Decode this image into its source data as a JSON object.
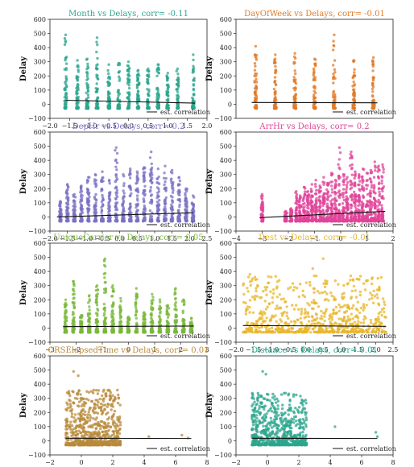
{
  "chart_data": [
    {
      "type": "scatter",
      "title": "Month vs Delays, corr= -0.11",
      "color": "#2ca58d",
      "ylabel": "Delay",
      "xlim": [
        -2.0,
        2.0
      ],
      "ylim": [
        -100,
        600
      ],
      "xticks": [
        -2.0,
        -1.5,
        -1.0,
        -0.5,
        0.0,
        0.5,
        1.0,
        1.5,
        2.0
      ],
      "xtick_labels": [
        "−2.0",
        "−1.5",
        "−1.0",
        "−0.5",
        "0.0",
        "0.5",
        "1.0",
        "1.5",
        "2.0"
      ],
      "yticks": [
        -100,
        0,
        100,
        200,
        300,
        400,
        500,
        600
      ],
      "ytick_labels": [
        "−100",
        "0",
        "100",
        "200",
        "300",
        "400",
        "500",
        "600"
      ],
      "legend": "est. correlation",
      "legend_loc": "lower right",
      "pattern": "strips",
      "strips": [
        {
          "x": -1.6,
          "ymax": 490
        },
        {
          "x": -1.3,
          "ymax": 310
        },
        {
          "x": -1.05,
          "ymax": 320
        },
        {
          "x": -0.8,
          "ymax": 470
        },
        {
          "x": -0.5,
          "ymax": 280
        },
        {
          "x": -0.25,
          "ymax": 290
        },
        {
          "x": 0.0,
          "ymax": 300
        },
        {
          "x": 0.25,
          "ymax": 240
        },
        {
          "x": 0.5,
          "ymax": 250
        },
        {
          "x": 0.75,
          "ymax": 280
        },
        {
          "x": 1.0,
          "ymax": 220
        },
        {
          "x": 1.25,
          "ymax": 250
        },
        {
          "x": 1.65,
          "ymax": 350
        }
      ],
      "fit": {
        "x0": -1.6,
        "y0": 28,
        "x1": 1.7,
        "y1": 8
      }
    },
    {
      "type": "scatter",
      "title": "DayOfWeek vs Delays, corr= -0.01",
      "color": "#e07b2a",
      "ylabel": "Delay",
      "xlim": [
        -2.0,
        2.0
      ],
      "ylim": [
        -100,
        600
      ],
      "xticks": [],
      "xtick_labels": [],
      "yticks": [
        -100,
        0,
        100,
        200,
        300,
        400,
        500,
        600
      ],
      "ytick_labels": [
        "−100",
        "0",
        "100",
        "200",
        "300",
        "400",
        "500",
        "600"
      ],
      "legend": "est. correlation",
      "legend_loc": "lower right",
      "pattern": "strips",
      "strips": [
        {
          "x": -1.5,
          "ymax": 410
        },
        {
          "x": -1.0,
          "ymax": 350
        },
        {
          "x": -0.5,
          "ymax": 360
        },
        {
          "x": 0.0,
          "ymax": 320
        },
        {
          "x": 0.5,
          "ymax": 490
        },
        {
          "x": 1.0,
          "ymax": 310
        },
        {
          "x": 1.5,
          "ymax": 330
        }
      ],
      "fit": {
        "x0": -1.6,
        "y0": 12,
        "x1": 1.6,
        "y1": 10
      }
    },
    {
      "type": "scatter",
      "title": "DepHr vs Delays, corr= 0.2",
      "color": "#7b72c4",
      "ylabel": "Delay",
      "xlim": [
        -2.0,
        2.5
      ],
      "ylim": [
        -100,
        600
      ],
      "xticks": [
        -2.0,
        -1.5,
        -1.0,
        -0.5,
        0.0,
        0.5,
        1.0,
        1.5,
        2.0,
        2.5
      ],
      "xtick_labels": [
        "−2.0",
        "−1.5",
        "−1.0",
        "−0.5",
        "0.0",
        "0.5",
        "1.0",
        "1.5",
        "2.0",
        "2.5"
      ],
      "yticks": [
        -100,
        0,
        100,
        200,
        300,
        400,
        500,
        600
      ],
      "ytick_labels": [
        "−100",
        "0",
        "100",
        "200",
        "300",
        "400",
        "500",
        "600"
      ],
      "legend": "est. correlation",
      "legend_loc": "lower right",
      "pattern": "strips",
      "strips": [
        {
          "x": -1.7,
          "ymax": 110
        },
        {
          "x": -1.5,
          "ymax": 230
        },
        {
          "x": -1.3,
          "ymax": 160
        },
        {
          "x": -1.1,
          "ymax": 220
        },
        {
          "x": -0.9,
          "ymax": 280
        },
        {
          "x": -0.7,
          "ymax": 300
        },
        {
          "x": -0.5,
          "ymax": 320
        },
        {
          "x": -0.3,
          "ymax": 260
        },
        {
          "x": -0.1,
          "ymax": 490
        },
        {
          "x": 0.1,
          "ymax": 300
        },
        {
          "x": 0.3,
          "ymax": 340
        },
        {
          "x": 0.5,
          "ymax": 320
        },
        {
          "x": 0.7,
          "ymax": 350
        },
        {
          "x": 0.9,
          "ymax": 460
        },
        {
          "x": 1.1,
          "ymax": 340
        },
        {
          "x": 1.3,
          "ymax": 360
        },
        {
          "x": 1.5,
          "ymax": 330
        },
        {
          "x": 1.7,
          "ymax": 280
        },
        {
          "x": 1.9,
          "ymax": 200
        },
        {
          "x": 2.1,
          "ymax": 150
        }
      ],
      "fit": {
        "x0": -1.8,
        "y0": 0,
        "x1": 2.1,
        "y1": 30
      }
    },
    {
      "type": "scatter",
      "title": "ArrHr vs Delays, corr= 0.2",
      "color": "#e0449a",
      "ylabel": "Delay",
      "xlim": [
        -4,
        2
      ],
      "ylim": [
        -100,
        600
      ],
      "xticks": [
        -4,
        -3,
        -2,
        -1,
        0,
        1,
        2
      ],
      "xtick_labels": [
        "−4",
        "−3",
        "−2",
        "−1",
        "0",
        "1",
        "2"
      ],
      "yticks": [
        -100,
        0,
        100,
        200,
        300,
        400,
        500,
        600
      ],
      "ytick_labels": [
        "−100",
        "0",
        "100",
        "200",
        "300",
        "400",
        "500",
        "600"
      ],
      "legend": "est. correlation",
      "legend_loc": "lower right",
      "pattern": "strips",
      "strips": [
        {
          "x": -3.0,
          "ymax": 160
        },
        {
          "x": -2.1,
          "ymax": 40
        },
        {
          "x": -1.9,
          "ymax": 60
        },
        {
          "x": -1.7,
          "ymax": 180
        },
        {
          "x": -1.55,
          "ymax": 150
        },
        {
          "x": -1.4,
          "ymax": 210
        },
        {
          "x": -1.25,
          "ymax": 180
        },
        {
          "x": -1.1,
          "ymax": 230
        },
        {
          "x": -0.95,
          "ymax": 260
        },
        {
          "x": -0.8,
          "ymax": 220
        },
        {
          "x": -0.65,
          "ymax": 280
        },
        {
          "x": -0.5,
          "ymax": 240
        },
        {
          "x": -0.35,
          "ymax": 310
        },
        {
          "x": -0.2,
          "ymax": 260
        },
        {
          "x": -0.05,
          "ymax": 490
        },
        {
          "x": 0.1,
          "ymax": 300
        },
        {
          "x": 0.25,
          "ymax": 280
        },
        {
          "x": 0.4,
          "ymax": 460
        },
        {
          "x": 0.55,
          "ymax": 320
        },
        {
          "x": 0.7,
          "ymax": 300
        },
        {
          "x": 0.85,
          "ymax": 340
        },
        {
          "x": 1.0,
          "ymax": 310
        },
        {
          "x": 1.15,
          "ymax": 330
        },
        {
          "x": 1.3,
          "ymax": 390
        },
        {
          "x": 1.45,
          "ymax": 360
        },
        {
          "x": 1.6,
          "ymax": 370
        }
      ],
      "fit": {
        "x0": -3.1,
        "y0": -5,
        "x1": 1.7,
        "y1": 40
      }
    },
    {
      "type": "scatter",
      "title": "UniqueCarrier vs Delays, corr= 0.05",
      "color": "#7ab83a",
      "ylabel": "Delay",
      "xlim": [
        -3,
        3
      ],
      "ylim": [
        -100,
        600
      ],
      "xticks": [
        -3,
        -2,
        -1,
        0,
        1,
        2,
        3
      ],
      "xtick_labels": [
        "−3",
        "−2",
        "−1",
        "0",
        "1",
        "2",
        "3"
      ],
      "yticks": [
        -100,
        0,
        100,
        200,
        300,
        400,
        500,
        600
      ],
      "ytick_labels": [
        "−100",
        "0",
        "100",
        "200",
        "300",
        "400",
        "500",
        "600"
      ],
      "legend": "est. correlation",
      "legend_loc": "lower right",
      "pattern": "strips",
      "strips": [
        {
          "x": -2.4,
          "ymax": 200
        },
        {
          "x": -2.1,
          "ymax": 330
        },
        {
          "x": -1.8,
          "ymax": 90
        },
        {
          "x": -1.5,
          "ymax": 230
        },
        {
          "x": -1.2,
          "ymax": 300
        },
        {
          "x": -0.9,
          "ymax": 490
        },
        {
          "x": -0.6,
          "ymax": 300
        },
        {
          "x": -0.3,
          "ymax": 210
        },
        {
          "x": 0.0,
          "ymax": 80
        },
        {
          "x": 0.3,
          "ymax": 280
        },
        {
          "x": 0.6,
          "ymax": 110
        },
        {
          "x": 0.9,
          "ymax": 240
        },
        {
          "x": 1.2,
          "ymax": 200
        },
        {
          "x": 1.5,
          "ymax": 160
        },
        {
          "x": 1.8,
          "ymax": 280
        },
        {
          "x": 2.1,
          "ymax": 200
        },
        {
          "x": 2.4,
          "ymax": 70
        }
      ],
      "fit": {
        "x0": -2.5,
        "y0": 10,
        "x1": 2.5,
        "y1": 14
      }
    },
    {
      "type": "scatter",
      "title": "Dest vs Delays, corr= -0.01",
      "color": "#e8b52a",
      "ylabel": "Delay",
      "xlim": [
        -2.0,
        2.5
      ],
      "ylim": [
        -100,
        600
      ],
      "xticks": [
        -2.0,
        -1.5,
        -1.0,
        -0.5,
        0.0,
        0.5,
        1.0,
        1.5,
        2.0,
        2.5
      ],
      "xtick_labels": [
        "−2.0",
        "−1.5",
        "−1.0",
        "−0.5",
        "0.0",
        "0.5",
        "1.0",
        "1.5",
        "2.0",
        "2.5"
      ],
      "yticks": [
        -100,
        0,
        100,
        200,
        300,
        400,
        500,
        600
      ],
      "ytick_labels": [
        "−100",
        "0",
        "100",
        "200",
        "300",
        "400",
        "500",
        "600"
      ],
      "legend": "est. correlation",
      "legend_loc": "lower right",
      "pattern": "cloud",
      "cloud": {
        "xmin": -1.8,
        "xmax": 2.3,
        "ymin": -30,
        "ymax": 370,
        "outliers": [
          [
            0.5,
            490
          ],
          [
            -1.6,
            380
          ],
          [
            0.2,
            420
          ]
        ]
      },
      "fit": {
        "x0": -1.8,
        "y0": 18,
        "x1": 2.3,
        "y1": 12
      }
    },
    {
      "type": "scatter",
      "title": "CRSElapsedTime vs Delays, corr= 0.01",
      "color": "#b88a3a",
      "ylabel": "Delay",
      "xlim": [
        -2,
        8
      ],
      "ylim": [
        -100,
        600
      ],
      "xticks": [
        -2,
        0,
        2,
        4,
        6,
        8
      ],
      "xtick_labels": [
        "−2",
        "0",
        "2",
        "4",
        "6",
        "8"
      ],
      "yticks": [
        -100,
        0,
        100,
        200,
        300,
        400,
        500,
        600
      ],
      "ytick_labels": [
        "−100",
        "0",
        "100",
        "200",
        "300",
        "400",
        "500",
        "600"
      ],
      "legend": "est. correlation",
      "legend_loc": "lower right",
      "pattern": "cloud",
      "cloud": {
        "xmin": -1.0,
        "xmax": 2.5,
        "ymin": -30,
        "ymax": 360,
        "outliers": [
          [
            -0.5,
            490
          ],
          [
            -0.2,
            460
          ],
          [
            4.3,
            30
          ],
          [
            6.4,
            40
          ],
          [
            6.8,
            20
          ]
        ]
      },
      "fit": {
        "x0": -1.0,
        "y0": 18,
        "x1": 7.0,
        "y1": 16
      }
    },
    {
      "type": "scatter",
      "title": "Distance vs Delays, corr= 0.01",
      "color": "#2ca58d",
      "ylabel": "Delay",
      "xlim": [
        -2,
        8
      ],
      "ylim": [
        -100,
        600
      ],
      "xticks": [
        -2,
        0,
        2,
        4,
        6,
        8
      ],
      "xtick_labels": [
        "−2",
        "0",
        "2",
        "4",
        "6",
        "8"
      ],
      "yticks": [
        -100,
        0,
        100,
        200,
        300,
        400,
        500,
        600
      ],
      "ytick_labels": [
        "−100",
        "0",
        "100",
        "200",
        "300",
        "400",
        "500",
        "600"
      ],
      "legend": "est. correlation",
      "legend_loc": "lower right",
      "pattern": "cloud",
      "cloud": {
        "xmin": -1.0,
        "xmax": 2.5,
        "ymin": -30,
        "ymax": 340,
        "outliers": [
          [
            -0.3,
            490
          ],
          [
            -0.1,
            470
          ],
          [
            4.3,
            100
          ],
          [
            6.9,
            60
          ],
          [
            7.0,
            30
          ]
        ]
      },
      "fit": {
        "x0": -1.0,
        "y0": 18,
        "x1": 7.0,
        "y1": 16
      }
    }
  ]
}
